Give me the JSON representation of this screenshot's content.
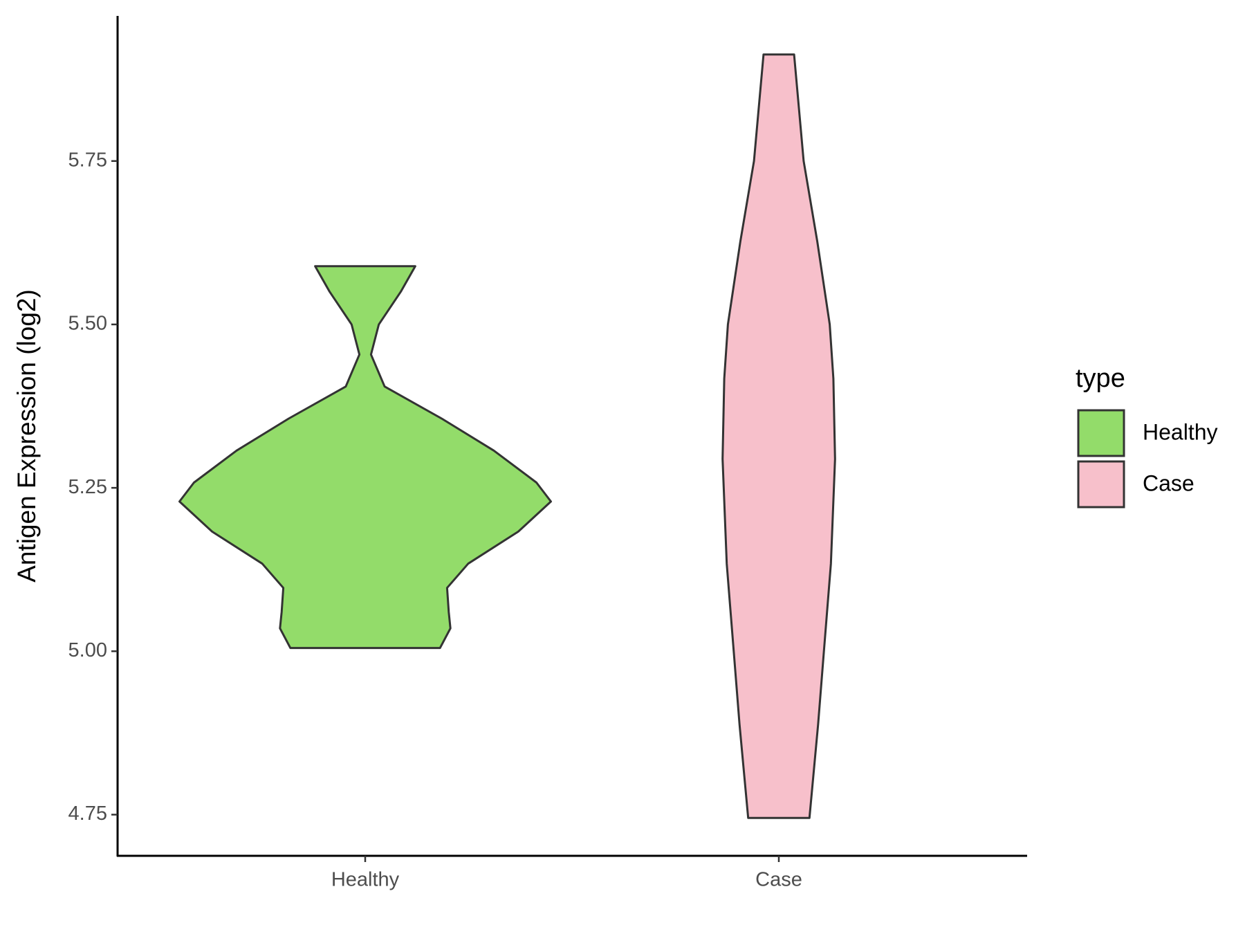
{
  "chart_data": {
    "type": "violin",
    "y_label": "Antigen Expression (log2)",
    "categories": [
      "Healthy",
      "Case"
    ],
    "legend_title": "type",
    "legend": "right",
    "ylim": [
      4.687,
      5.972
    ],
    "yticks": [
      {
        "value": 4.75,
        "label": "4.75"
      },
      {
        "value": 5,
        "label": "5.00"
      },
      {
        "value": 5.25,
        "label": "5.25"
      },
      {
        "value": 5.5,
        "label": "5.50"
      },
      {
        "value": 5.75,
        "label": "5.75"
      }
    ],
    "series": [
      {
        "name": "Healthy",
        "color": "#93dc6a",
        "y": [
          5.005,
          5.035,
          5.06,
          5.097,
          5.134,
          5.183,
          5.229,
          5.258,
          5.307,
          5.356,
          5.405,
          5.454,
          5.5,
          5.55,
          5.589
        ],
        "width": [
          0.181,
          0.206,
          0.202,
          0.198,
          0.249,
          0.37,
          0.449,
          0.414,
          0.311,
          0.185,
          0.047,
          0.014,
          0.033,
          0.086,
          0.121
        ]
      },
      {
        "name": "Case",
        "color": "#f7c0cb",
        "y": [
          4.745,
          4.888,
          5.0,
          5.134,
          5.294,
          5.417,
          5.5,
          5.627,
          5.75,
          5.913
        ],
        "width": [
          0.074,
          0.095,
          0.109,
          0.126,
          0.136,
          0.132,
          0.123,
          0.093,
          0.06,
          0.037
        ]
      }
    ]
  }
}
